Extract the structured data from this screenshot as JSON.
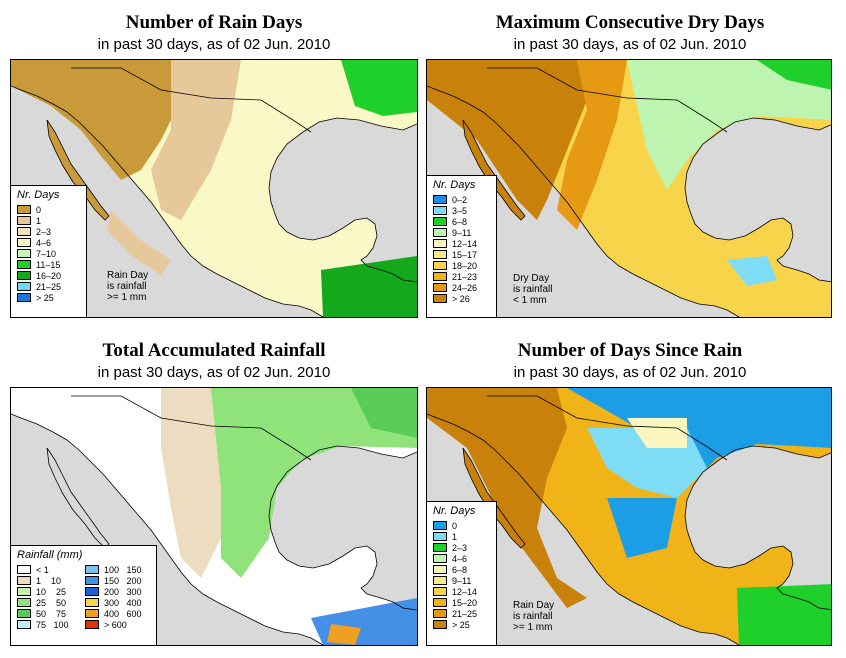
{
  "panels": [
    {
      "title": "Number of Rain Days",
      "subtitle": "in past 30 days, as of  02 Jun. 2010",
      "legend_title": "Nr. Days",
      "legend": [
        {
          "label": "0",
          "color": "#c89a3a"
        },
        {
          "label": "1",
          "color": "#e6c89a"
        },
        {
          "label": "2–3",
          "color": "#f4e2c0"
        },
        {
          "label": "4–6",
          "color": "#fbf8c8"
        },
        {
          "label": "7–10",
          "color": "#c8f5b8"
        },
        {
          "label": "11–15",
          "color": "#1fcf2a"
        },
        {
          "label": "16–20",
          "color": "#14a81c"
        },
        {
          "label": "21–25",
          "color": "#6fd6f5"
        },
        {
          "label": "> 25",
          "color": "#1c78d6"
        }
      ],
      "note": [
        "Rain Day",
        "is rainfall",
        ">= 1 mm"
      ]
    },
    {
      "title": "Maximum Consecutive Dry Days",
      "subtitle": "in past 30 days, as of  02 Jun. 2010",
      "legend_title": "Nr. Days",
      "legend": [
        {
          "label": "0–2",
          "color": "#1c8ef0"
        },
        {
          "label": "3–5",
          "color": "#7fdcf5"
        },
        {
          "label": "6–8",
          "color": "#1fcf2a"
        },
        {
          "label": "9–11",
          "color": "#bdf5b0"
        },
        {
          "label": "12–14",
          "color": "#fbf6c0"
        },
        {
          "label": "15–17",
          "color": "#fbeb86"
        },
        {
          "label": "18–20",
          "color": "#f7d44a"
        },
        {
          "label": "21–23",
          "color": "#f0b418"
        },
        {
          "label": "24–26",
          "color": "#e69a14"
        },
        {
          "label": "> 26",
          "color": "#c8820c"
        }
      ],
      "note": [
        "Dry Day",
        "is rainfall",
        "< 1 mm"
      ]
    },
    {
      "title": "Total Accumulated Rainfall",
      "subtitle": "in past 30 days, as of  02 Jun. 2010",
      "legend_title": "Rainfall (mm)",
      "legend_left": [
        {
          "label": "< 1",
          "color": "#ffffff"
        },
        {
          "label": "1    10",
          "color": "#ecdcc0"
        },
        {
          "label": "10    25",
          "color": "#c8f2b0"
        },
        {
          "label": "25    50",
          "color": "#8fe37a"
        },
        {
          "label": "50    75",
          "color": "#58cc56"
        },
        {
          "label": "75   100",
          "color": "#c2ecf8"
        }
      ],
      "legend_right": [
        {
          "label": "100   150",
          "color": "#7cc0f0"
        },
        {
          "label": "150   200",
          "color": "#4490e6"
        },
        {
          "label": "200   300",
          "color": "#1c5fd6"
        },
        {
          "label": "300   400",
          "color": "#f7d44a"
        },
        {
          "label": "400   600",
          "color": "#f0a020"
        },
        {
          "label": "> 600",
          "color": "#e03010"
        }
      ]
    },
    {
      "title": "Number of Days Since Rain",
      "subtitle": "in past 30 days, as of  02 Jun. 2010",
      "legend_title": "Nr. Days",
      "legend": [
        {
          "label": "0",
          "color": "#1c9ee6"
        },
        {
          "label": "1",
          "color": "#7fdcf5"
        },
        {
          "label": "2–3",
          "color": "#1fcf2a"
        },
        {
          "label": "4–6",
          "color": "#bdf5b0"
        },
        {
          "label": "6–8",
          "color": "#fbf6c0"
        },
        {
          "label": "9–11",
          "color": "#fbeb86"
        },
        {
          "label": "12–14",
          "color": "#f7d44a"
        },
        {
          "label": "15–20",
          "color": "#f0b418"
        },
        {
          "label": "21–25",
          "color": "#e69a14"
        },
        {
          "label": "> 25",
          "color": "#c8820c"
        }
      ],
      "note": [
        "Rain Day",
        "is rainfall",
        ">= 1 mm"
      ]
    }
  ],
  "map_colors": {
    "ocean": "#d9d9d9",
    "border": "#000000",
    "p1_base": "#fbf8c8",
    "p1_dry": "#c89a3a",
    "p1_light": "#e6c89a",
    "p1_wet": "#1fcf2a",
    "p1_wet2": "#14a81c",
    "p2_base": "#f7d44a",
    "p2_dry": "#c8820c",
    "p2_mid": "#e69a14",
    "p2_wet": "#bdf5b0",
    "p2_wet2": "#1fcf2a",
    "p2_blue": "#7fdcf5",
    "p3_base": "#ffffff",
    "p3_tan": "#ecdcc0",
    "p3_green": "#8fe37a",
    "p3_green2": "#58cc56",
    "p3_blue": "#4490e6",
    "p3_orange": "#f0a020",
    "p4_base": "#f0b418",
    "p4_dry": "#c8820c",
    "p4_blue": "#1c9ee6",
    "p4_lblue": "#7fdcf5",
    "p4_green": "#1fcf2a",
    "p4_yellow": "#fbf6c0"
  }
}
